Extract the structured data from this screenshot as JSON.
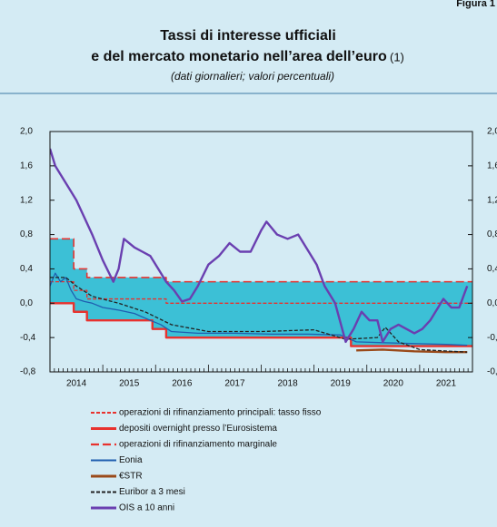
{
  "figure_label": "Figura 1",
  "chart_data": {
    "type": "line",
    "title": "Tassi di interesse ufficiali",
    "title_line2": "e del mercato monetario nell’area dell’euro",
    "title_note": "(1)",
    "subtitle": "(dati giornalieri; valori percentuali)",
    "xlim": [
      2014,
      2022
    ],
    "xticks": [
      {
        "value": 2014.5,
        "label": "2014"
      },
      {
        "value": 2015.5,
        "label": "2015"
      },
      {
        "value": 2016.5,
        "label": "2016"
      },
      {
        "value": 2017.5,
        "label": "2017"
      },
      {
        "value": 2018.5,
        "label": "2018"
      },
      {
        "value": 2019.5,
        "label": "2019"
      },
      {
        "value": 2020.5,
        "label": "2020"
      },
      {
        "value": 2021.5,
        "label": "2021"
      }
    ],
    "ylim": [
      -0.8,
      2.0
    ],
    "yticks": [
      {
        "value": 2.0,
        "label": "2,0"
      },
      {
        "value": 1.6,
        "label": "1,6"
      },
      {
        "value": 1.2,
        "label": "1,2"
      },
      {
        "value": 0.8,
        "label": "0,8"
      },
      {
        "value": 0.4,
        "label": "0,4"
      },
      {
        "value": 0.0,
        "label": "0,0"
      },
      {
        "value": -0.4,
        "label": "-0,4"
      },
      {
        "value": -0.8,
        "label": "-0,8"
      }
    ],
    "corridor_color": "#3cc0d6",
    "series": [
      {
        "name": "operazioni di rifinanziamento principali: tasso fisso",
        "color": "#e8322e",
        "line_style": "dashed",
        "x": [
          2014.0,
          2014.45,
          2014.45,
          2014.7,
          2014.7,
          2016.2,
          2016.2,
          2022.0
        ],
        "values": [
          0.25,
          0.25,
          0.15,
          0.15,
          0.05,
          0.05,
          0.0,
          0.0
        ]
      },
      {
        "name": "depositi overnight presso l’Eurosistema",
        "color": "#e8322e",
        "line_style": "bold",
        "x": [
          2014.0,
          2014.45,
          2014.45,
          2014.7,
          2014.7,
          2015.94,
          2015.94,
          2016.2,
          2016.2,
          2019.7,
          2019.7,
          2022.0
        ],
        "values": [
          0.0,
          0.0,
          -0.1,
          -0.1,
          -0.2,
          -0.2,
          -0.3,
          -0.3,
          -0.4,
          -0.4,
          -0.5,
          -0.5
        ]
      },
      {
        "name": "operazioni di rifinanziamento marginale",
        "color": "#e8322e",
        "line_style": "long-dashed",
        "x": [
          2014.0,
          2014.45,
          2014.45,
          2014.7,
          2014.7,
          2016.2,
          2016.2,
          2022.0
        ],
        "values": [
          0.75,
          0.75,
          0.4,
          0.4,
          0.3,
          0.3,
          0.25,
          0.25
        ]
      },
      {
        "name": "Eonia",
        "color": "#1f5fb0",
        "line_style": "solid",
        "x": [
          2014.0,
          2014.1,
          2014.2,
          2014.3,
          2014.4,
          2014.5,
          2014.65,
          2014.8,
          2015.0,
          2015.3,
          2015.6,
          2015.9,
          2016.1,
          2016.3,
          2016.8,
          2017.5,
          2018.2,
          2018.9,
          2019.5,
          2019.8,
          2020.3,
          2020.9,
          2021.5,
          2021.9
        ],
        "values": [
          0.2,
          0.35,
          0.25,
          0.3,
          0.15,
          0.05,
          0.02,
          0.0,
          -0.05,
          -0.08,
          -0.12,
          -0.2,
          -0.25,
          -0.33,
          -0.35,
          -0.35,
          -0.36,
          -0.36,
          -0.37,
          -0.45,
          -0.46,
          -0.47,
          -0.48,
          -0.49
        ]
      },
      {
        "name": "€STR",
        "color": "#9a4a1a",
        "line_style": "bold",
        "x": [
          2019.8,
          2020.3,
          2020.9,
          2021.5,
          2021.9
        ],
        "values": [
          -0.55,
          -0.54,
          -0.56,
          -0.57,
          -0.57
        ]
      },
      {
        "name": "Euribor a 3 mesi",
        "color": "#222222",
        "line_style": "dashed",
        "x": [
          2014.0,
          2014.3,
          2014.5,
          2014.8,
          2015.3,
          2015.8,
          2016.3,
          2017.0,
          2018.0,
          2019.0,
          2019.6,
          2020.2,
          2020.35,
          2020.6,
          2021.0,
          2021.9
        ],
        "values": [
          0.3,
          0.3,
          0.2,
          0.08,
          0.0,
          -0.1,
          -0.25,
          -0.33,
          -0.33,
          -0.31,
          -0.42,
          -0.4,
          -0.28,
          -0.45,
          -0.54,
          -0.57
        ]
      },
      {
        "name": "OIS a 10 anni",
        "color": "#6a3fb0",
        "line_style": "bold",
        "x": [
          2014.0,
          2014.1,
          2014.2,
          2014.35,
          2014.5,
          2014.65,
          2014.8,
          2015.0,
          2015.2,
          2015.3,
          2015.4,
          2015.5,
          2015.6,
          2015.75,
          2015.9,
          2016.05,
          2016.2,
          2016.35,
          2016.5,
          2016.65,
          2016.8,
          2017.0,
          2017.2,
          2017.4,
          2017.6,
          2017.8,
          2018.0,
          2018.1,
          2018.3,
          2018.5,
          2018.7,
          2018.9,
          2019.05,
          2019.2,
          2019.4,
          2019.6,
          2019.75,
          2019.9,
          2020.05,
          2020.2,
          2020.3,
          2020.45,
          2020.6,
          2020.75,
          2020.9,
          2021.05,
          2021.2,
          2021.35,
          2021.45,
          2021.6,
          2021.75,
          2021.9
        ],
        "values": [
          1.8,
          1.6,
          1.5,
          1.35,
          1.2,
          1.0,
          0.8,
          0.5,
          0.25,
          0.4,
          0.75,
          0.7,
          0.65,
          0.6,
          0.55,
          0.4,
          0.25,
          0.15,
          0.02,
          0.05,
          0.2,
          0.45,
          0.55,
          0.7,
          0.6,
          0.6,
          0.85,
          0.95,
          0.8,
          0.75,
          0.8,
          0.6,
          0.45,
          0.2,
          0.0,
          -0.45,
          -0.3,
          -0.1,
          -0.2,
          -0.2,
          -0.45,
          -0.3,
          -0.25,
          -0.3,
          -0.35,
          -0.3,
          -0.2,
          -0.05,
          0.05,
          -0.05,
          -0.05,
          0.2
        ]
      }
    ]
  }
}
